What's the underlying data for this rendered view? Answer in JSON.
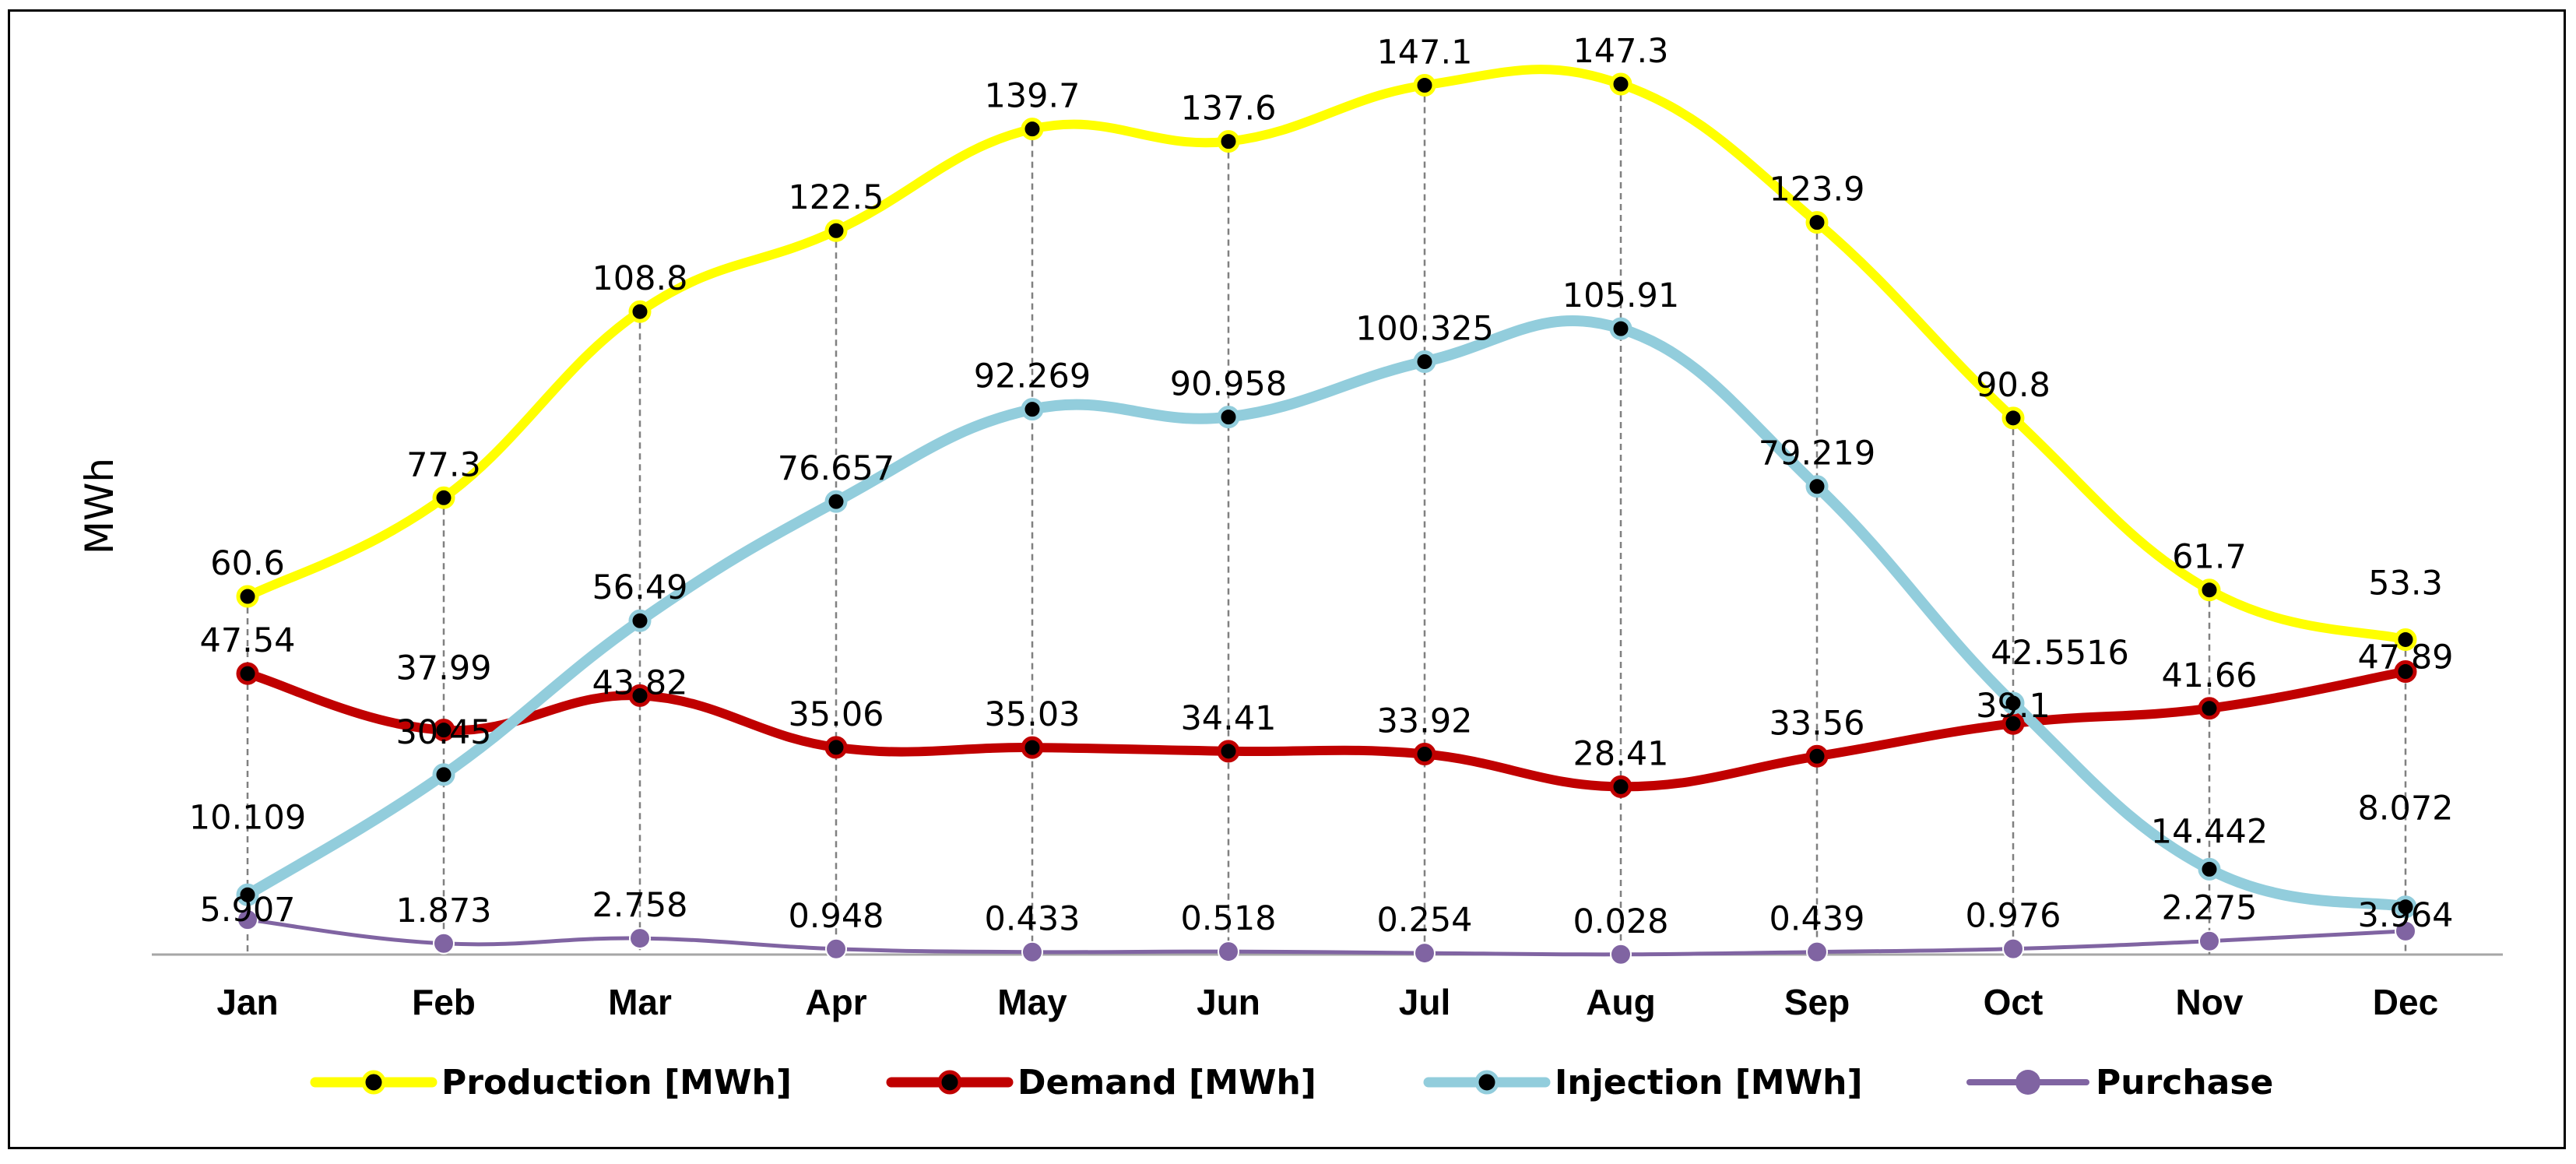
{
  "chart_data": {
    "type": "line",
    "title": "",
    "xlabel": "",
    "ylabel": "MWh",
    "ylim": [
      0,
      155
    ],
    "grid": false,
    "legend_position": "bottom",
    "categories": [
      "Jan",
      "Feb",
      "Mar",
      "Apr",
      "May",
      "Jun",
      "Jul",
      "Aug",
      "Sep",
      "Oct",
      "Nov",
      "Dec"
    ],
    "series": [
      {
        "name": "Production [MWh]",
        "color": "#ffff00",
        "marker": "black-dot",
        "values": [
          60.6,
          77.3,
          108.8,
          122.5,
          139.7,
          137.6,
          147.1,
          147.3,
          123.9,
          90.8,
          61.7,
          53.3
        ],
        "labels": [
          "60.6",
          "77.3",
          "108.8",
          "122.5",
          "139.7",
          "137.6",
          "147.1",
          "147.3",
          "123.9",
          "90.8",
          "61.7",
          "53.3"
        ]
      },
      {
        "name": "Demand [MWh]",
        "color": "#c00000",
        "marker": "black-dot",
        "values": [
          47.54,
          37.99,
          43.82,
          35.06,
          35.03,
          34.41,
          33.92,
          28.41,
          33.56,
          39.1,
          41.66,
          47.89
        ],
        "labels": [
          "47.54",
          "37.99",
          "43.82",
          "35.06",
          "35.03",
          "34.41",
          "33.92",
          "28.41",
          "33.56",
          "39.1",
          "41.66",
          "47.89"
        ]
      },
      {
        "name": "Injection [MWh]",
        "color": "#92cddc",
        "marker": "black-dot",
        "values": [
          10.109,
          30.45,
          56.49,
          76.657,
          92.269,
          90.958,
          100.325,
          105.91,
          79.219,
          42.5516,
          14.442,
          8.072
        ],
        "labels": [
          "10.109",
          "30.45",
          "56.49",
          "76.657",
          "92.269",
          "90.958",
          "100.325",
          "105.91",
          "79.219",
          "42.5516",
          "14.442",
          "8.072"
        ]
      },
      {
        "name": "Purchase",
        "color": "#8064a2",
        "marker": "purple-dot",
        "values": [
          5.907,
          1.873,
          2.758,
          0.948,
          0.433,
          0.518,
          0.254,
          0.028,
          0.439,
          0.976,
          2.275,
          3.964
        ],
        "labels": [
          "5.907",
          "1.873",
          "2.758",
          "0.948",
          "0.433",
          "0.518",
          "0.254",
          "0.028",
          "0.439",
          "0.976",
          "2.275",
          "3.964"
        ]
      }
    ]
  }
}
